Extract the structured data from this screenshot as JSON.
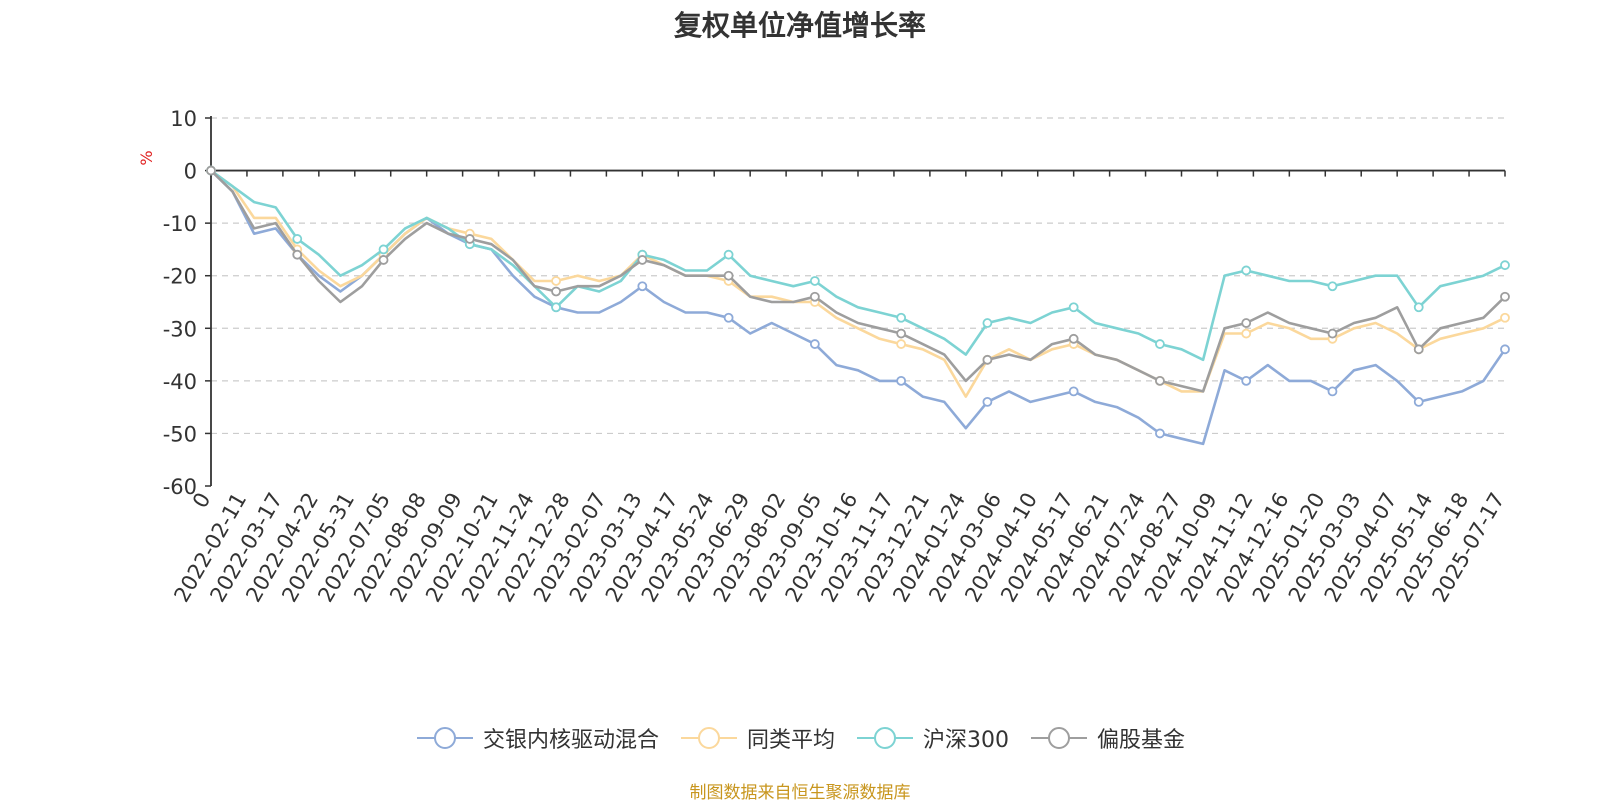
{
  "chart_data": {
    "type": "line",
    "title": "复权单位净值增长率",
    "ylabel": "%",
    "ylim": [
      -60,
      10
    ],
    "yticks": [
      10,
      0,
      -10,
      -20,
      -30,
      -40,
      -50,
      -60
    ],
    "x_tick_labels": [
      "0",
      "2022-02-11",
      "2022-03-17",
      "2022-04-22",
      "2022-05-31",
      "2022-07-05",
      "2022-08-08",
      "2022-09-09",
      "2022-10-21",
      "2022-11-24",
      "2022-12-28",
      "2023-02-07",
      "2023-03-13",
      "2023-04-17",
      "2023-05-24",
      "2023-06-29",
      "2023-08-02",
      "2023-09-05",
      "2023-10-16",
      "2023-11-17",
      "2023-12-21",
      "2024-01-24",
      "2024-03-06",
      "2024-04-10",
      "2024-05-17",
      "2024-06-21",
      "2024-07-24",
      "2024-08-27",
      "2024-10-09",
      "2024-11-12",
      "2024-12-16",
      "2025-01-20",
      "2025-03-03",
      "2025-04-07",
      "2025-05-14",
      "2025-06-18",
      "2025-07-17"
    ],
    "grid": "horizontal-dashed",
    "legend_position": "bottom",
    "series": [
      {
        "name": "交银内核驱动混合",
        "color": "#8eaad8",
        "values": [
          0,
          -4,
          -12,
          -11,
          -16,
          -20,
          -23,
          -20,
          -16,
          -12,
          -9,
          -12,
          -14,
          -15,
          -20,
          -24,
          -26,
          -27,
          -27,
          -25,
          -22,
          -25,
          -27,
          -27,
          -28,
          -31,
          -29,
          -31,
          -33,
          -37,
          -38,
          -40,
          -40,
          -43,
          -44,
          -49,
          -44,
          -42,
          -44,
          -43,
          -42,
          -44,
          -45,
          -47,
          -50,
          -51,
          -52,
          -38,
          -40,
          -37,
          -40,
          -40,
          -42,
          -38,
          -37,
          -40,
          -44,
          -43,
          -42,
          -40,
          -34
        ]
      },
      {
        "name": "同类平均",
        "color": "#fbd89c",
        "values": [
          0,
          -3,
          -9,
          -9,
          -15,
          -19,
          -22,
          -20,
          -16,
          -12,
          -9,
          -11,
          -12,
          -13,
          -17,
          -21,
          -21,
          -20,
          -21,
          -20,
          -16,
          -18,
          -20,
          -20,
          -21,
          -24,
          -24,
          -25,
          -25,
          -28,
          -30,
          -32,
          -33,
          -34,
          -36,
          -43,
          -36,
          -34,
          -36,
          -34,
          -33,
          -35,
          -36,
          -38,
          -40,
          -42,
          -42,
          -31,
          -31,
          -29,
          -30,
          -32,
          -32,
          -30,
          -29,
          -31,
          -34,
          -32,
          -31,
          -30,
          -28
        ]
      },
      {
        "name": "沪深300",
        "color": "#7dd3d3",
        "values": [
          0,
          -3,
          -6,
          -7,
          -13,
          -16,
          -20,
          -18,
          -15,
          -11,
          -9,
          -11,
          -14,
          -15,
          -18,
          -22,
          -26,
          -22,
          -23,
          -21,
          -16,
          -17,
          -19,
          -19,
          -16,
          -20,
          -21,
          -22,
          -21,
          -24,
          -26,
          -27,
          -28,
          -30,
          -32,
          -35,
          -29,
          -28,
          -29,
          -27,
          -26,
          -29,
          -30,
          -31,
          -33,
          -34,
          -36,
          -20,
          -19,
          -20,
          -21,
          -21,
          -22,
          -21,
          -20,
          -20,
          -26,
          -22,
          -21,
          -20,
          -18
        ]
      },
      {
        "name": "偏股基金",
        "color": "#9e9e9e",
        "values": [
          0,
          -4,
          -11,
          -10,
          -16,
          -21,
          -25,
          -22,
          -17,
          -13,
          -10,
          -12,
          -13,
          -14,
          -17,
          -22,
          -23,
          -22,
          -22,
          -20,
          -17,
          -18,
          -20,
          -20,
          -20,
          -24,
          -25,
          -25,
          -24,
          -27,
          -29,
          -30,
          -31,
          -33,
          -35,
          -40,
          -36,
          -35,
          -36,
          -33,
          -32,
          -35,
          -36,
          -38,
          -40,
          -41,
          -42,
          -30,
          -29,
          -27,
          -29,
          -30,
          -31,
          -29,
          -28,
          -26,
          -34,
          -30,
          -29,
          -28,
          -24
        ]
      }
    ]
  },
  "footer": {
    "source_note": "制图数据来自恒生聚源数据库"
  }
}
